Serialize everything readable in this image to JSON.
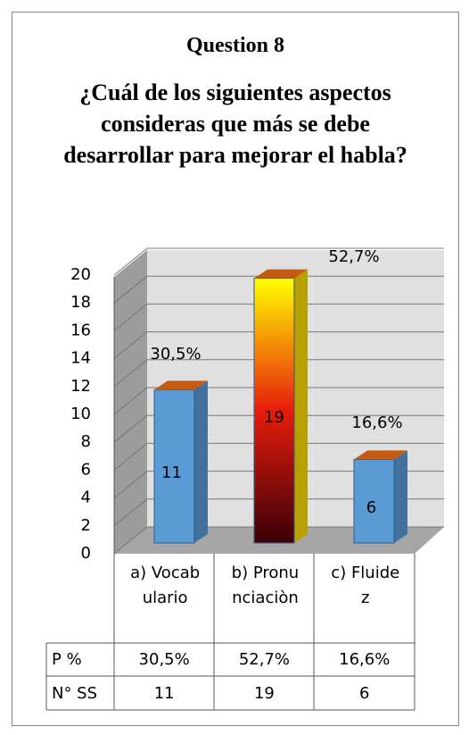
{
  "chart_data": {
    "type": "bar3d",
    "title": "Question 8",
    "subtitle": "¿Cuál de los siguientes aspectos consideras que más se debe desarrollar para mejorar el habla?",
    "categories": [
      "a) Vocabulario",
      "b) Pronunciaciòn",
      "c) Fluidez"
    ],
    "series": [
      {
        "name": "N° SS",
        "values": [
          11,
          19,
          6
        ],
        "colors": [
          "#5b9bd5",
          "#e81c0c",
          "#5b9bd5"
        ]
      },
      {
        "name": "P %",
        "values": [
          30.5,
          52.7,
          16.6
        ],
        "value_labels": [
          "30,5%",
          "52,7%",
          "16,6%"
        ]
      }
    ],
    "ylim": [
      0,
      20
    ],
    "yticks": [
      0,
      2,
      4,
      6,
      8,
      10,
      12,
      14,
      16,
      18,
      20
    ],
    "grid": true
  }
}
